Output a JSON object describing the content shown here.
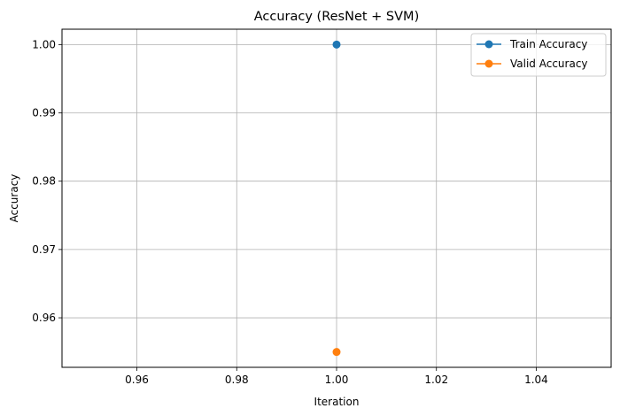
{
  "chart_data": {
    "type": "line",
    "title": "Accuracy (ResNet + SVM)",
    "xlabel": "Iteration",
    "ylabel": "Accuracy",
    "xlim": [
      0.945,
      1.055
    ],
    "ylim": [
      0.95275,
      1.00225
    ],
    "x_ticks": [
      0.96,
      0.98,
      1.0,
      1.02,
      1.04
    ],
    "x_tick_labels": [
      "0.96",
      "0.98",
      "1.00",
      "1.02",
      "1.04"
    ],
    "y_ticks": [
      0.96,
      0.97,
      0.98,
      0.99,
      1.0
    ],
    "y_tick_labels": [
      "0.96",
      "0.97",
      "0.98",
      "0.99",
      "1.00"
    ],
    "grid": true,
    "legend_position": "top-right",
    "series": [
      {
        "name": "Train Accuracy",
        "color": "#1f77b4",
        "marker": "circle",
        "x": [
          1.0
        ],
        "y": [
          1.0
        ]
      },
      {
        "name": "Valid Accuracy",
        "color": "#ff7f0e",
        "marker": "circle",
        "x": [
          1.0
        ],
        "y": [
          0.955
        ]
      }
    ]
  }
}
